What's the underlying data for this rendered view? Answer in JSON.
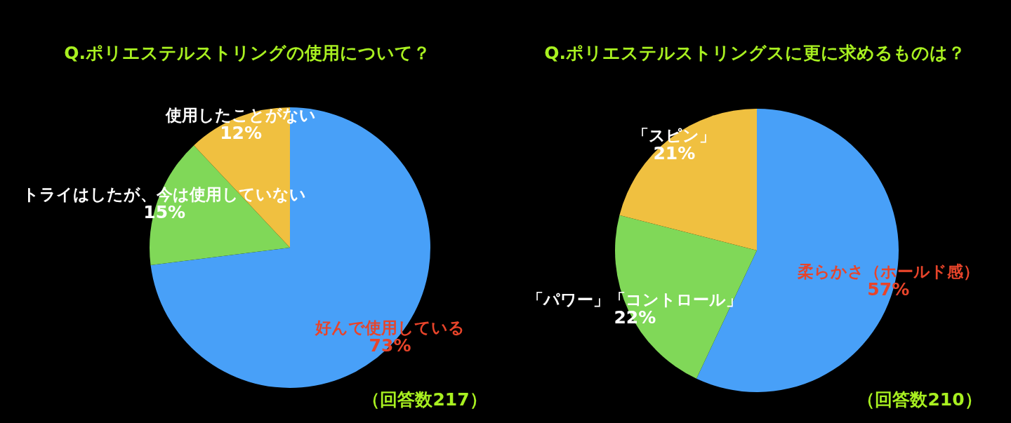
{
  "chart_data": [
    {
      "type": "pie",
      "title": "Q.ポリエステルストリングの使用について？",
      "categories": [
        "好んで使用している",
        "トライはしたが、今は使用していない",
        "使用したことがない"
      ],
      "values": [
        73,
        15,
        12
      ],
      "value_labels": [
        "73%",
        "15%",
        "12%"
      ],
      "colors": [
        "#48a0f8",
        "#80d858",
        "#f0c040"
      ],
      "annotations": [
        "（回答数217）"
      ]
    },
    {
      "type": "pie",
      "title": "Q.ポリエステルストリングスに更に求めるものは？",
      "categories": [
        "柔らかさ（ホールド感）",
        "「パワー」「コントロール」",
        "「スピン」"
      ],
      "values": [
        57,
        22,
        21
      ],
      "value_labels": [
        "57%",
        "22%",
        "21%"
      ],
      "colors": [
        "#48a0f8",
        "#80d858",
        "#f0c040"
      ],
      "annotations": [
        "（回答数210）"
      ]
    }
  ]
}
